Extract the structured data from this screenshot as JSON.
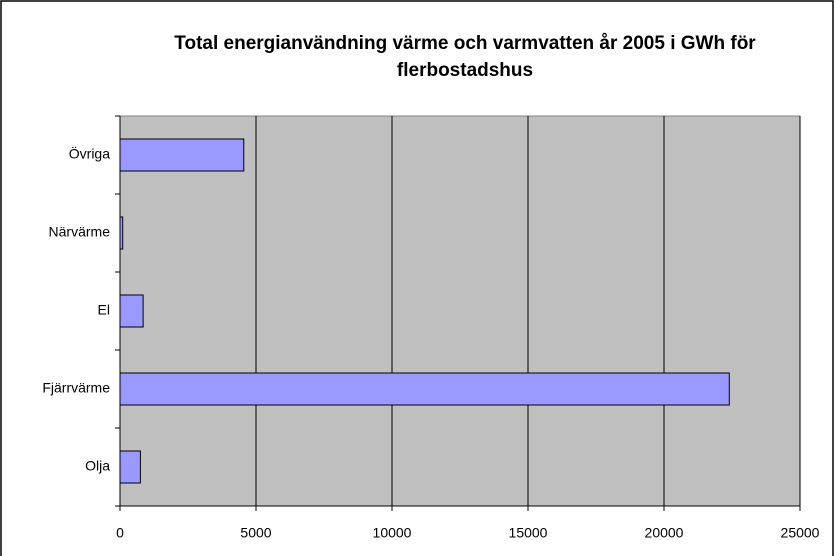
{
  "chart_data": {
    "type": "barh",
    "title": "Total energianvändning värme och varmvatten år 2005 i GWh för flerbostadshus",
    "categories": [
      "Olja",
      "Fjärrvärme",
      "El",
      "Närvärme",
      "Övriga"
    ],
    "values": [
      750,
      22400,
      850,
      100,
      4550
    ],
    "color": "#9999ff",
    "xlim": [
      0,
      25000
    ],
    "xticks": [
      0,
      5000,
      10000,
      15000,
      20000,
      25000
    ],
    "grid": true
  }
}
